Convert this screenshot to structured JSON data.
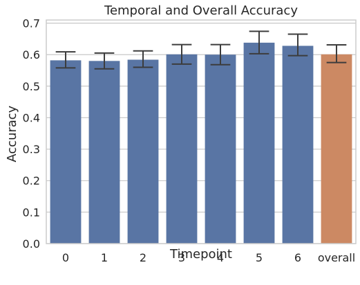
{
  "chart_data": {
    "type": "bar",
    "title": "Temporal and Overall Accuracy",
    "xlabel": "Timepoint",
    "ylabel": "Accuracy",
    "categories": [
      "0",
      "1",
      "2",
      "3",
      "4",
      "5",
      "6",
      "overall"
    ],
    "values": [
      0.582,
      0.58,
      0.584,
      0.601,
      0.6,
      0.638,
      0.628,
      0.601
    ],
    "error_low": [
      0.558,
      0.555,
      0.56,
      0.57,
      0.568,
      0.603,
      0.597,
      0.575
    ],
    "error_high": [
      0.609,
      0.605,
      0.612,
      0.632,
      0.632,
      0.674,
      0.665,
      0.631
    ],
    "ylim": [
      0,
      0.71
    ],
    "yticks": [
      0.0,
      0.1,
      0.2,
      0.3,
      0.4,
      0.5,
      0.6,
      0.7
    ],
    "ytick_labels": [
      "0.0",
      "0.1",
      "0.2",
      "0.3",
      "0.4",
      "0.5",
      "0.6",
      "0.7"
    ],
    "grid": "horizontal",
    "colors": {
      "default_bar": "#5975a4",
      "highlight_bar": "#cc8963",
      "error_bar": "#3c3c3c",
      "grid": "#cccccc",
      "spine": "#cccccc"
    },
    "highlight_category": "overall"
  }
}
